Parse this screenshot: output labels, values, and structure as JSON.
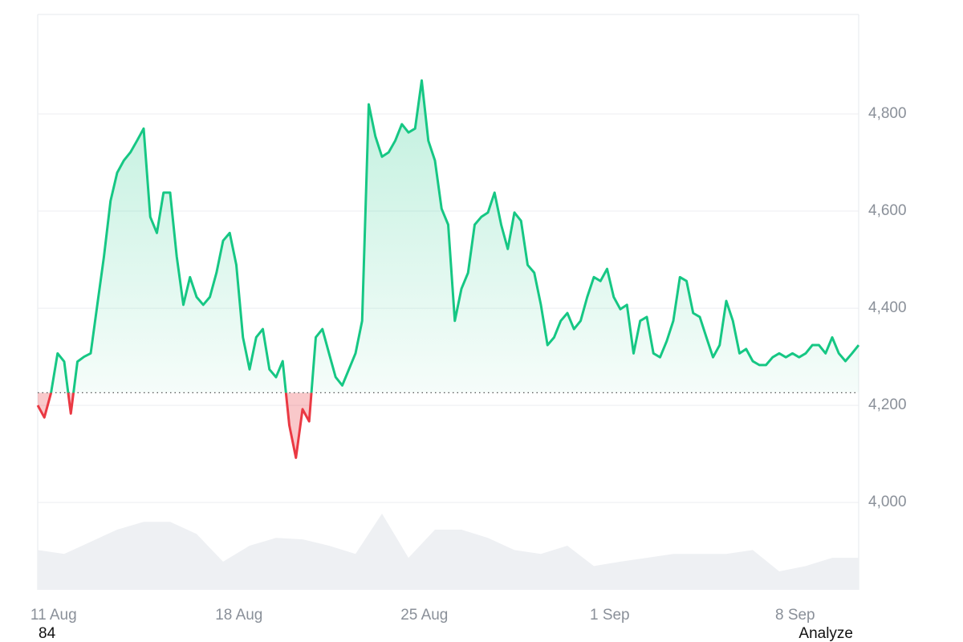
{
  "chart_data": {
    "type": "line",
    "xlim": [
      0,
      124
    ],
    "xticks": [
      {
        "value": 2.4,
        "label": "11 Aug"
      },
      {
        "value": 30.4,
        "label": "18 Aug"
      },
      {
        "value": 58.4,
        "label": "25 Aug"
      },
      {
        "value": 86.4,
        "label": "1 Sep"
      },
      {
        "value": 114.4,
        "label": "8 Sep"
      }
    ],
    "ylim": [
      3820,
      5005
    ],
    "yticks": [
      {
        "value": 4000,
        "label": "4,000"
      },
      {
        "value": 4200,
        "label": "4,200"
      },
      {
        "value": 4400,
        "label": "4,400"
      },
      {
        "value": 4600,
        "label": "4,600"
      },
      {
        "value": 4800,
        "label": "4,800"
      }
    ],
    "grid": true,
    "baseline": 4226,
    "up_color": "#16c784",
    "down_color": "#ea3943",
    "series": [
      {
        "values": [
          4200,
          4175,
          4225,
          4307,
          4290,
          4183,
          4290,
          4300,
          4307,
          4407,
          4506,
          4621,
          4679,
          4704,
          4721,
          4745,
          4770,
          4588,
          4555,
          4638,
          4638,
          4506,
          4407,
          4464,
          4423,
          4407,
          4423,
          4473,
          4539,
          4555,
          4489,
          4340,
          4274,
          4340,
          4357,
          4274,
          4258,
          4291,
          4159,
          4092,
          4192,
          4167,
          4340,
          4357,
          4307,
          4258,
          4241,
          4274,
          4307,
          4374,
          4820,
          4754,
          4712,
          4721,
          4745,
          4779,
          4762,
          4770,
          4869,
          4745,
          4704,
          4605,
          4572,
          4374,
          4440,
          4473,
          4572,
          4588,
          4597,
          4638,
          4572,
          4522,
          4597,
          4580,
          4489,
          4473,
          4407,
          4324,
          4340,
          4374,
          4390,
          4357,
          4374,
          4423,
          4464,
          4456,
          4481,
          4423,
          4398,
          4407,
          4307,
          4374,
          4382,
          4307,
          4299,
          4332,
          4374,
          4464,
          4456,
          4390,
          4382,
          4340,
          4299,
          4324,
          4415,
          4374,
          4307,
          4316,
          4291,
          4283,
          4283,
          4299,
          4307,
          4299,
          4307,
          4299,
          4307,
          4324,
          4324,
          4307,
          4340,
          4307,
          4291,
          4307,
          4324
        ]
      }
    ],
    "volume": {
      "color": "#eef0f3",
      "x": [
        0,
        4,
        8,
        12,
        16,
        20,
        24,
        28,
        32,
        36,
        40,
        44,
        48,
        52,
        56,
        60,
        64,
        68,
        72,
        76,
        80,
        84,
        88,
        92,
        96,
        100,
        104,
        108,
        112,
        116,
        120,
        124
      ],
      "values": [
        3902,
        3894,
        3919,
        3944,
        3960,
        3960,
        3935,
        3878,
        3911,
        3927,
        3924,
        3911,
        3894,
        3977,
        3886,
        3944,
        3944,
        3927,
        3902,
        3894,
        3911,
        3869,
        3878,
        3886,
        3894,
        3894,
        3894,
        3902,
        3858,
        3869,
        3886,
        3886
      ]
    },
    "footer_left": "84",
    "footer_right": "Analyze"
  }
}
